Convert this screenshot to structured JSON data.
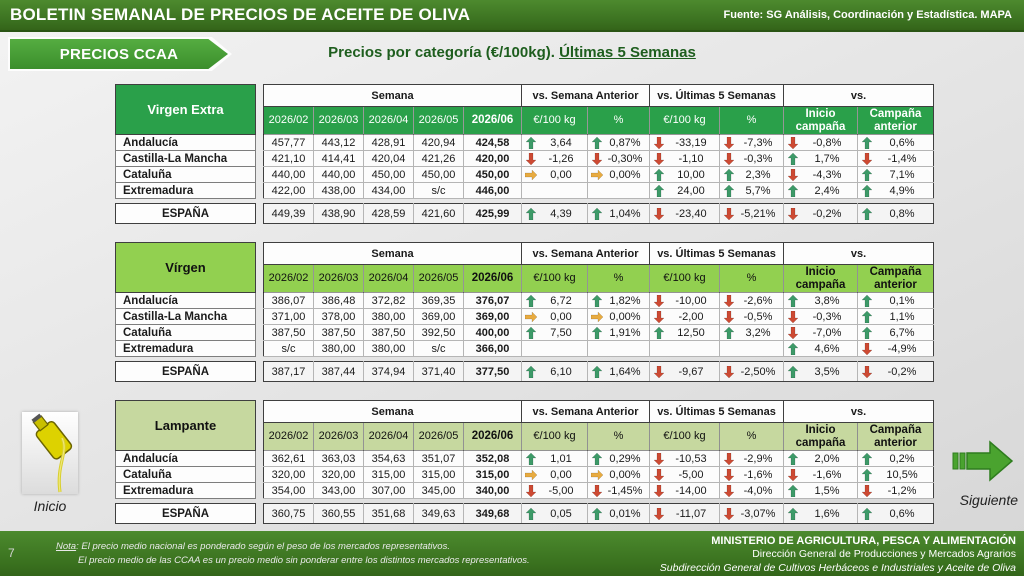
{
  "header": {
    "title": "BOLETIN SEMANAL DE PRECIOS DE ACEITE DE OLIVA",
    "source": "Fuente: SG Análisis, Coordinación y Estadística. MAPA"
  },
  "banner": {
    "label": "PRECIOS CCAA"
  },
  "page_title": {
    "main": "Precios por categoría (€/100kg). ",
    "underlined": "Últimas 5 Semanas"
  },
  "table_headers": {
    "semana": "Semana",
    "vs_semana_anterior": "vs. Semana Anterior",
    "vs_ultimas_5_semanas": "vs. Últimas 5 Semanas",
    "vs": "vs.",
    "weeks": [
      "2026/02",
      "2026/03",
      "2026/04",
      "2026/05",
      "2026/06"
    ],
    "eur_100kg": "€/100 kg",
    "pct": "%",
    "inicio_campana": "Inicio campaña",
    "campana_anterior": "Campaña anterior"
  },
  "tables": [
    {
      "category": "Virgen Extra",
      "rows": [
        {
          "region": "Andalucía",
          "weeks": [
            "457,77",
            "443,12",
            "428,91",
            "420,94",
            "424,58"
          ],
          "changes": [
            [
              "up",
              "3,64"
            ],
            [
              "up",
              "0,87%"
            ],
            [
              "down",
              "-33,19"
            ],
            [
              "down",
              "-7,3%"
            ],
            [
              "down",
              "-0,8%"
            ],
            [
              "up",
              "0,6%"
            ]
          ]
        },
        {
          "region": "Castilla-La Mancha",
          "weeks": [
            "421,10",
            "414,41",
            "420,04",
            "421,26",
            "420,00"
          ],
          "changes": [
            [
              "down",
              "-1,26"
            ],
            [
              "down",
              "-0,30%"
            ],
            [
              "down",
              "-1,10"
            ],
            [
              "down",
              "-0,3%"
            ],
            [
              "up",
              "1,7%"
            ],
            [
              "down",
              "-1,4%"
            ]
          ]
        },
        {
          "region": "Cataluña",
          "weeks": [
            "440,00",
            "440,00",
            "450,00",
            "450,00",
            "450,00"
          ],
          "changes": [
            [
              "right",
              "0,00"
            ],
            [
              "right",
              "0,00%"
            ],
            [
              "up",
              "10,00"
            ],
            [
              "up",
              "2,3%"
            ],
            [
              "down",
              "-4,3%"
            ],
            [
              "up",
              "7,1%"
            ]
          ]
        },
        {
          "region": "Extremadura",
          "weeks": [
            "422,00",
            "438,00",
            "434,00",
            "s/c",
            "446,00"
          ],
          "changes": [
            null,
            null,
            [
              "up",
              "24,00"
            ],
            [
              "up",
              "5,7%"
            ],
            [
              "up",
              "2,4%"
            ],
            [
              "up",
              "4,9%"
            ]
          ]
        }
      ],
      "total": {
        "region": "ESPAÑA",
        "weeks": [
          "449,39",
          "438,90",
          "428,59",
          "421,60",
          "425,99"
        ],
        "changes": [
          [
            "up",
            "4,39"
          ],
          [
            "up",
            "1,04%"
          ],
          [
            "down",
            "-23,40"
          ],
          [
            "down",
            "-5,21%"
          ],
          [
            "down",
            "-0,2%"
          ],
          [
            "up",
            "0,8%"
          ]
        ]
      }
    },
    {
      "category": "Vírgen",
      "rows": [
        {
          "region": "Andalucía",
          "weeks": [
            "386,07",
            "386,48",
            "372,82",
            "369,35",
            "376,07"
          ],
          "changes": [
            [
              "up",
              "6,72"
            ],
            [
              "up",
              "1,82%"
            ],
            [
              "down",
              "-10,00"
            ],
            [
              "down",
              "-2,6%"
            ],
            [
              "up",
              "3,8%"
            ],
            [
              "up",
              "0,1%"
            ]
          ]
        },
        {
          "region": "Castilla-La Mancha",
          "weeks": [
            "371,00",
            "378,00",
            "380,00",
            "369,00",
            "369,00"
          ],
          "changes": [
            [
              "right",
              "0,00"
            ],
            [
              "right",
              "0,00%"
            ],
            [
              "down",
              "-2,00"
            ],
            [
              "down",
              "-0,5%"
            ],
            [
              "down",
              "-0,3%"
            ],
            [
              "up",
              "1,1%"
            ]
          ]
        },
        {
          "region": "Cataluña",
          "weeks": [
            "387,50",
            "387,50",
            "387,50",
            "392,50",
            "400,00"
          ],
          "changes": [
            [
              "up",
              "7,50"
            ],
            [
              "up",
              "1,91%"
            ],
            [
              "up",
              "12,50"
            ],
            [
              "up",
              "3,2%"
            ],
            [
              "down",
              "-7,0%"
            ],
            [
              "up",
              "6,7%"
            ]
          ]
        },
        {
          "region": "Extremadura",
          "weeks": [
            "s/c",
            "380,00",
            "380,00",
            "s/c",
            "366,00"
          ],
          "changes": [
            null,
            null,
            null,
            null,
            [
              "up",
              "4,6%"
            ],
            [
              "down",
              "-4,9%"
            ]
          ]
        }
      ],
      "total": {
        "region": "ESPAÑA",
        "weeks": [
          "387,17",
          "387,44",
          "374,94",
          "371,40",
          "377,50"
        ],
        "changes": [
          [
            "up",
            "6,10"
          ],
          [
            "up",
            "1,64%"
          ],
          [
            "down",
            "-9,67"
          ],
          [
            "down",
            "-2,50%"
          ],
          [
            "up",
            "3,5%"
          ],
          [
            "down",
            "-0,2%"
          ]
        ]
      }
    },
    {
      "category": "Lampante",
      "rows": [
        {
          "region": "Andalucía",
          "weeks": [
            "362,61",
            "363,03",
            "354,63",
            "351,07",
            "352,08"
          ],
          "changes": [
            [
              "up",
              "1,01"
            ],
            [
              "up",
              "0,29%"
            ],
            [
              "down",
              "-10,53"
            ],
            [
              "down",
              "-2,9%"
            ],
            [
              "up",
              "2,0%"
            ],
            [
              "up",
              "0,2%"
            ]
          ]
        },
        {
          "region": "Cataluña",
          "weeks": [
            "320,00",
            "320,00",
            "315,00",
            "315,00",
            "315,00"
          ],
          "changes": [
            [
              "right",
              "0,00"
            ],
            [
              "right",
              "0,00%"
            ],
            [
              "down",
              "-5,00"
            ],
            [
              "down",
              "-1,6%"
            ],
            [
              "down",
              "-1,6%"
            ],
            [
              "up",
              "10,5%"
            ]
          ]
        },
        {
          "region": "Extremadura",
          "weeks": [
            "354,00",
            "343,00",
            "307,00",
            "345,00",
            "340,00"
          ],
          "changes": [
            [
              "down",
              "-5,00"
            ],
            [
              "down",
              "-1,45%"
            ],
            [
              "down",
              "-14,00"
            ],
            [
              "down",
              "-4,0%"
            ],
            [
              "up",
              "1,5%"
            ],
            [
              "down",
              "-1,2%"
            ]
          ]
        }
      ],
      "total": {
        "region": "ESPAÑA",
        "weeks": [
          "360,75",
          "360,55",
          "351,68",
          "349,63",
          "349,68"
        ],
        "changes": [
          [
            "up",
            "0,05"
          ],
          [
            "up",
            "0,01%"
          ],
          [
            "down",
            "-11,07"
          ],
          [
            "down",
            "-3,07%"
          ],
          [
            "up",
            "1,6%"
          ],
          [
            "up",
            "0,6%"
          ]
        ]
      }
    }
  ],
  "nav": {
    "inicio": "Inicio",
    "siguiente": "Siguiente"
  },
  "footer": {
    "page_number": "7",
    "note_label": "Nota",
    "note_line1": ": El precio medio nacional es ponderado según el peso de los mercados representativos.",
    "note_line2": "El precio medio de las CCAA es un precio medio sin ponderar entre los distintos mercados representativos.",
    "ministry": "MINISTERIO DE AGRICULTURA, PESCA Y ALIMENTACIÓN",
    "direction": "Dirección General de Producciones y Mercados Agrarios",
    "subdirection": "Subdirección General de Cultivos Herbáceos e Industriales y Aceite de Oliva"
  },
  "colors": {
    "virgen_extra_green": "#2aa04a",
    "virgen_green": "#92d050",
    "lampante_green": "#c6d89f",
    "title_green": "#1e5e1e",
    "arrow_up": "#3d9a68",
    "arrow_down": "#cd4a33",
    "arrow_right": "#e8ab40"
  }
}
